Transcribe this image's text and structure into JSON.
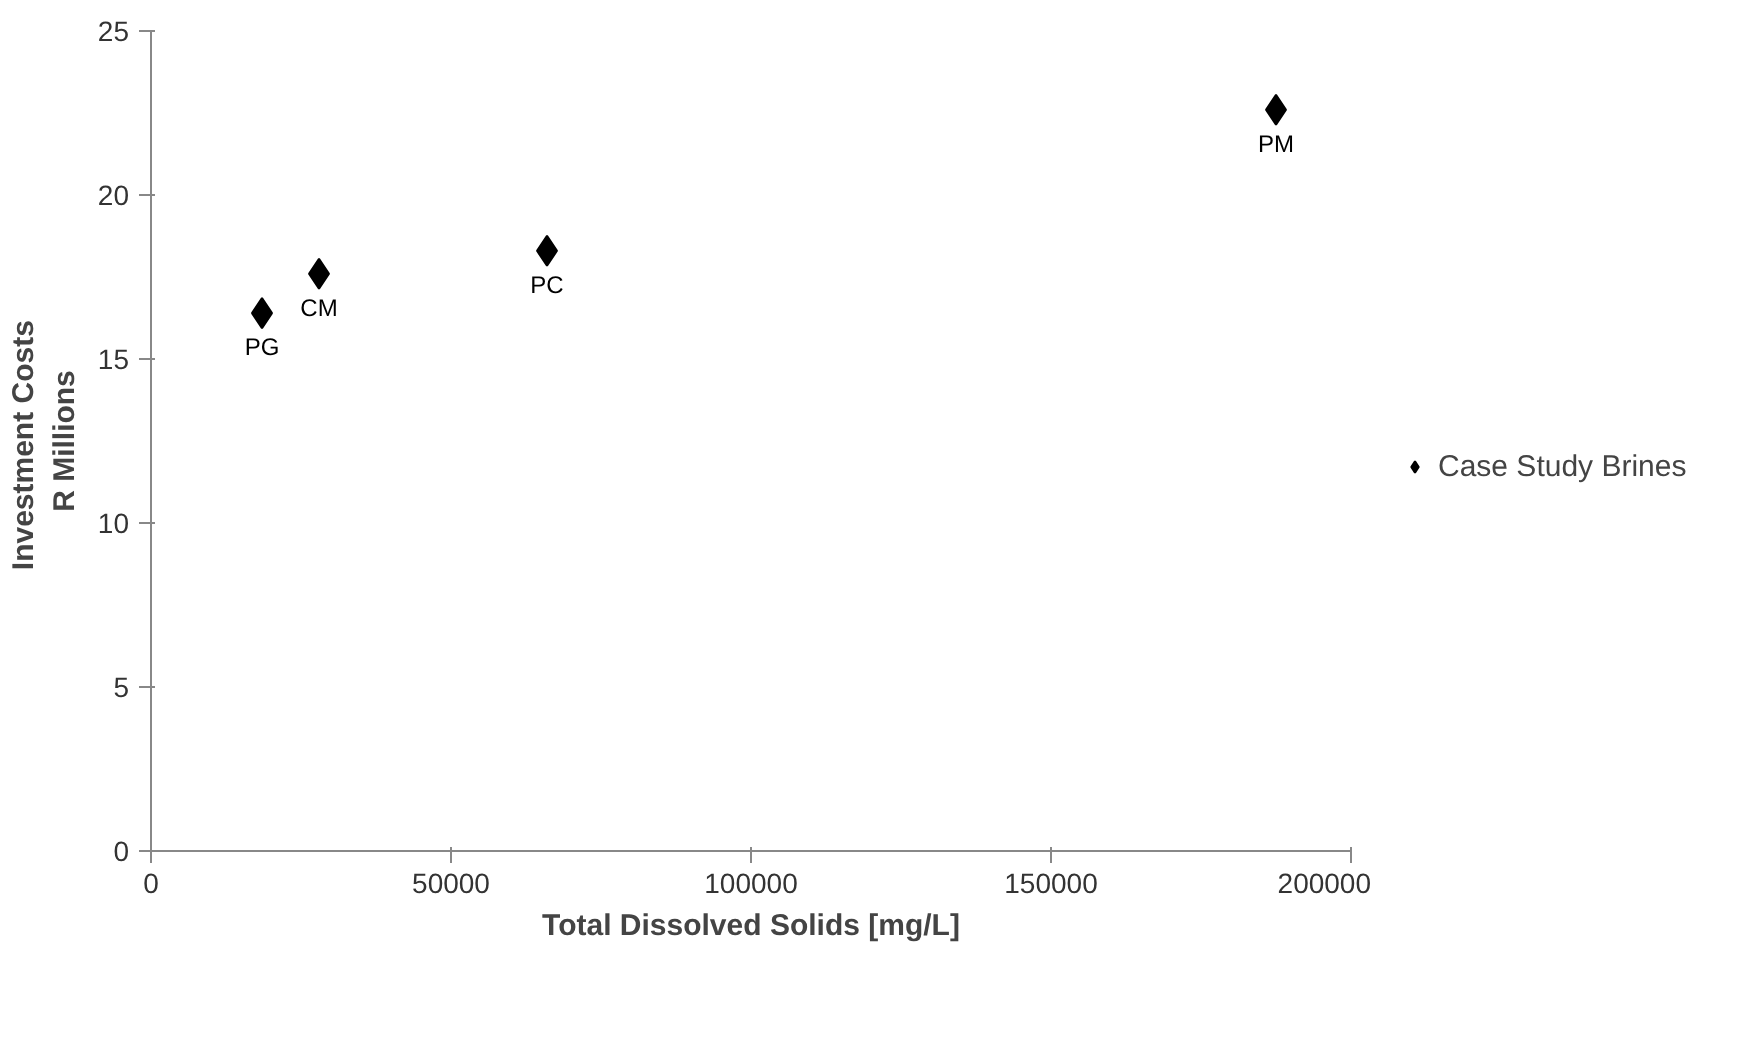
{
  "chart_data": {
    "type": "scatter",
    "xlabel": "Total Dissolved Solids [mg/L]",
    "ylabel": "Investment  Costs\nR Millions",
    "x": [
      18500,
      28000,
      66000,
      187500
    ],
    "series": [
      {
        "name": "Case Study Brines",
        "color": "#000000",
        "values": [
          16.4,
          17.6,
          18.3,
          22.6
        ]
      }
    ],
    "xlim": [
      0,
      200000
    ],
    "xticks": [
      0,
      50000,
      100000,
      150000,
      200000
    ],
    "ylim": [
      0,
      25
    ],
    "yticks": [
      0,
      5,
      10,
      15,
      20,
      25
    ],
    "grid": false,
    "legend": "right",
    "marker": "diamond",
    "annotations": [
      {
        "text": "PG",
        "x": 18500,
        "y": 16.4
      },
      {
        "text": "CM",
        "x": 28000,
        "y": 17.6
      },
      {
        "text": "PC",
        "x": 66000,
        "y": 18.3
      },
      {
        "text": "PM",
        "x": 187500,
        "y": 22.6
      }
    ]
  }
}
